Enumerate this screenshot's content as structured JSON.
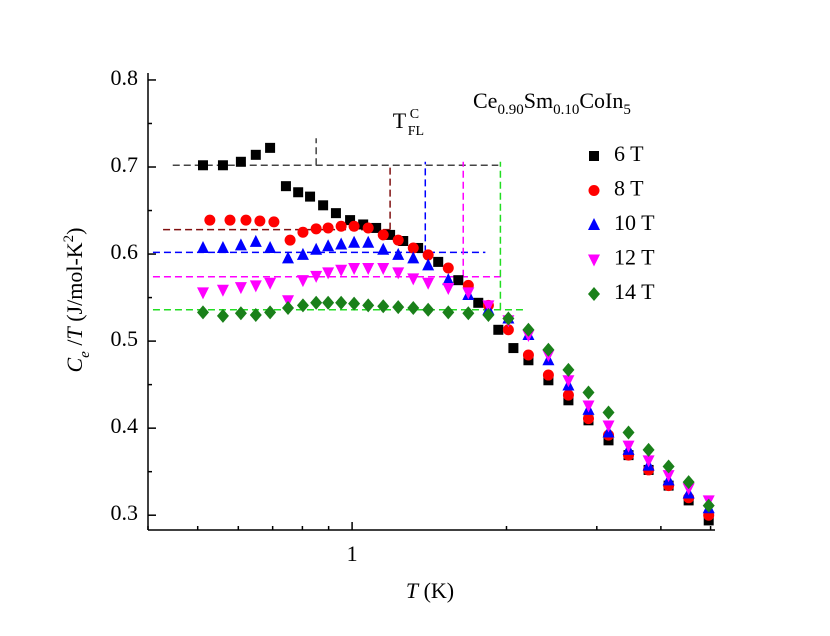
{
  "chart_data": {
    "type": "scatter",
    "title": [
      "Ce",
      "0.90",
      "Sm",
      "0.10",
      "CoIn",
      "5"
    ],
    "annotation": {
      "text": [
        "T",
        "C",
        "FL"
      ],
      "x": 1.2,
      "y": 0.745
    },
    "x_label": [
      "T",
      " (K)"
    ],
    "y_label": [
      "C",
      "e",
      " /",
      "T",
      " (J/mol-K",
      "2",
      ")"
    ],
    "x_log": true,
    "xlim": [
      0.4,
      5.1
    ],
    "xticks": [
      1
    ],
    "xminorticks": [
      0.4,
      0.5,
      0.6,
      0.7,
      0.8,
      0.9,
      2,
      3,
      4,
      5
    ],
    "ylim": [
      0.283,
      0.808
    ],
    "yticks": [
      0.3,
      0.4,
      0.5,
      0.6,
      0.7,
      0.8
    ],
    "yminorticks": [
      0.35,
      0.45,
      0.55,
      0.65,
      0.75
    ],
    "legend": "top-right",
    "series": [
      {
        "name": "6 T",
        "color": "#000000",
        "marker": "square",
        "x": [
          0.512,
          0.56,
          0.607,
          0.649,
          0.692,
          0.743,
          0.785,
          0.828,
          0.878,
          0.93,
          0.991,
          1.051,
          1.114,
          1.186,
          1.258,
          1.345,
          1.472,
          1.611,
          1.762,
          1.928,
          2.063,
          2.207,
          2.414,
          2.641,
          2.89,
          3.162,
          3.459,
          3.785,
          4.141,
          4.531,
          4.958
        ],
        "values": [
          0.702,
          0.702,
          0.706,
          0.714,
          0.722,
          0.678,
          0.671,
          0.666,
          0.656,
          0.647,
          0.639,
          0.634,
          0.63,
          0.622,
          0.615,
          0.607,
          0.591,
          0.57,
          0.544,
          0.513,
          0.492,
          0.478,
          0.455,
          0.432,
          0.409,
          0.386,
          0.369,
          0.352,
          0.334,
          0.317,
          0.294
        ]
      },
      {
        "name": "8 T",
        "color": "#ff0000",
        "marker": "circle",
        "x": [
          0.528,
          0.578,
          0.621,
          0.661,
          0.704,
          0.757,
          0.802,
          0.851,
          0.898,
          0.952,
          1.009,
          1.075,
          1.15,
          1.23,
          1.316,
          1.407,
          1.54,
          1.685,
          1.844,
          2.017,
          2.207,
          2.414,
          2.641,
          2.89,
          3.162,
          3.459,
          3.785,
          4.141,
          4.531,
          4.958
        ],
        "values": [
          0.639,
          0.639,
          0.639,
          0.638,
          0.637,
          0.616,
          0.625,
          0.629,
          0.63,
          0.632,
          0.632,
          0.63,
          0.622,
          0.616,
          0.607,
          0.599,
          0.584,
          0.564,
          0.541,
          0.513,
          0.484,
          0.461,
          0.438,
          0.411,
          0.392,
          0.369,
          0.352,
          0.334,
          0.32,
          0.3
        ]
      },
      {
        "name": "10 T",
        "color": "#0000ff",
        "marker": "triangle",
        "x": [
          0.512,
          0.56,
          0.607,
          0.649,
          0.692,
          0.75,
          0.802,
          0.851,
          0.898,
          0.952,
          1.009,
          1.075,
          1.15,
          1.23,
          1.316,
          1.407,
          1.54,
          1.685,
          1.844,
          2.017,
          2.207,
          2.414,
          2.641,
          2.89,
          3.162,
          3.459,
          3.785,
          4.141,
          4.531,
          4.958
        ],
        "values": [
          0.607,
          0.607,
          0.61,
          0.614,
          0.607,
          0.595,
          0.599,
          0.605,
          0.609,
          0.611,
          0.613,
          0.613,
          0.605,
          0.599,
          0.595,
          0.587,
          0.57,
          0.553,
          0.536,
          0.526,
          0.507,
          0.478,
          0.449,
          0.421,
          0.395,
          0.375,
          0.357,
          0.34,
          0.325,
          0.308
        ]
      },
      {
        "name": "12 T",
        "color": "#ff00ff",
        "marker": "triangle-down",
        "x": [
          0.512,
          0.56,
          0.607,
          0.649,
          0.692,
          0.75,
          0.802,
          0.851,
          0.898,
          0.952,
          1.009,
          1.075,
          1.15,
          1.23,
          1.316,
          1.407,
          1.54,
          1.685,
          1.844,
          2.017,
          2.207,
          2.414,
          2.641,
          2.89,
          3.162,
          3.459,
          3.785,
          4.141,
          4.531,
          4.958
        ],
        "values": [
          0.556,
          0.559,
          0.562,
          0.564,
          0.567,
          0.547,
          0.57,
          0.575,
          0.579,
          0.582,
          0.584,
          0.584,
          0.584,
          0.579,
          0.572,
          0.567,
          0.561,
          0.556,
          0.541,
          0.524,
          0.507,
          0.484,
          0.455,
          0.426,
          0.403,
          0.38,
          0.363,
          0.346,
          0.331,
          0.317
        ]
      },
      {
        "name": "14 T",
        "color": "#1a801a",
        "marker": "diamond",
        "x": [
          0.512,
          0.56,
          0.607,
          0.649,
          0.692,
          0.75,
          0.802,
          0.851,
          0.898,
          0.952,
          1.009,
          1.075,
          1.15,
          1.23,
          1.316,
          1.407,
          1.54,
          1.685,
          1.844,
          2.017,
          2.207,
          2.414,
          2.641,
          2.89,
          3.162,
          3.459,
          3.785,
          4.141,
          4.531,
          4.958
        ],
        "values": [
          0.533,
          0.529,
          0.532,
          0.53,
          0.533,
          0.538,
          0.541,
          0.544,
          0.544,
          0.544,
          0.543,
          0.541,
          0.54,
          0.539,
          0.538,
          0.536,
          0.533,
          0.532,
          0.53,
          0.526,
          0.513,
          0.49,
          0.467,
          0.441,
          0.418,
          0.395,
          0.375,
          0.356,
          0.338,
          0.311
        ]
      }
    ],
    "guide_lines": [
      {
        "color": "#444444",
        "y": 0.702,
        "x_from": 0.447,
        "x_to": 1.928,
        "x_v": 0.851,
        "y_top": 0.733
      },
      {
        "color": "#801010",
        "y": 0.628,
        "x_from": 0.428,
        "x_to": 1.186,
        "x_v": 1.186,
        "y_top": 0.702
      },
      {
        "color": "#0000ff",
        "y": 0.602,
        "x_from": 0.409,
        "x_to": 1.819,
        "x_v": 1.389,
        "y_top": 0.706
      },
      {
        "color": "#ff00ff",
        "y": 0.574,
        "x_from": 0.409,
        "x_to": 1.972,
        "x_v": 1.647,
        "y_top": 0.706
      },
      {
        "color": "#22dd22",
        "y": 0.536,
        "x_from": 0.409,
        "x_to": 2.158,
        "x_v": 1.946,
        "y_top": 0.706
      }
    ]
  }
}
